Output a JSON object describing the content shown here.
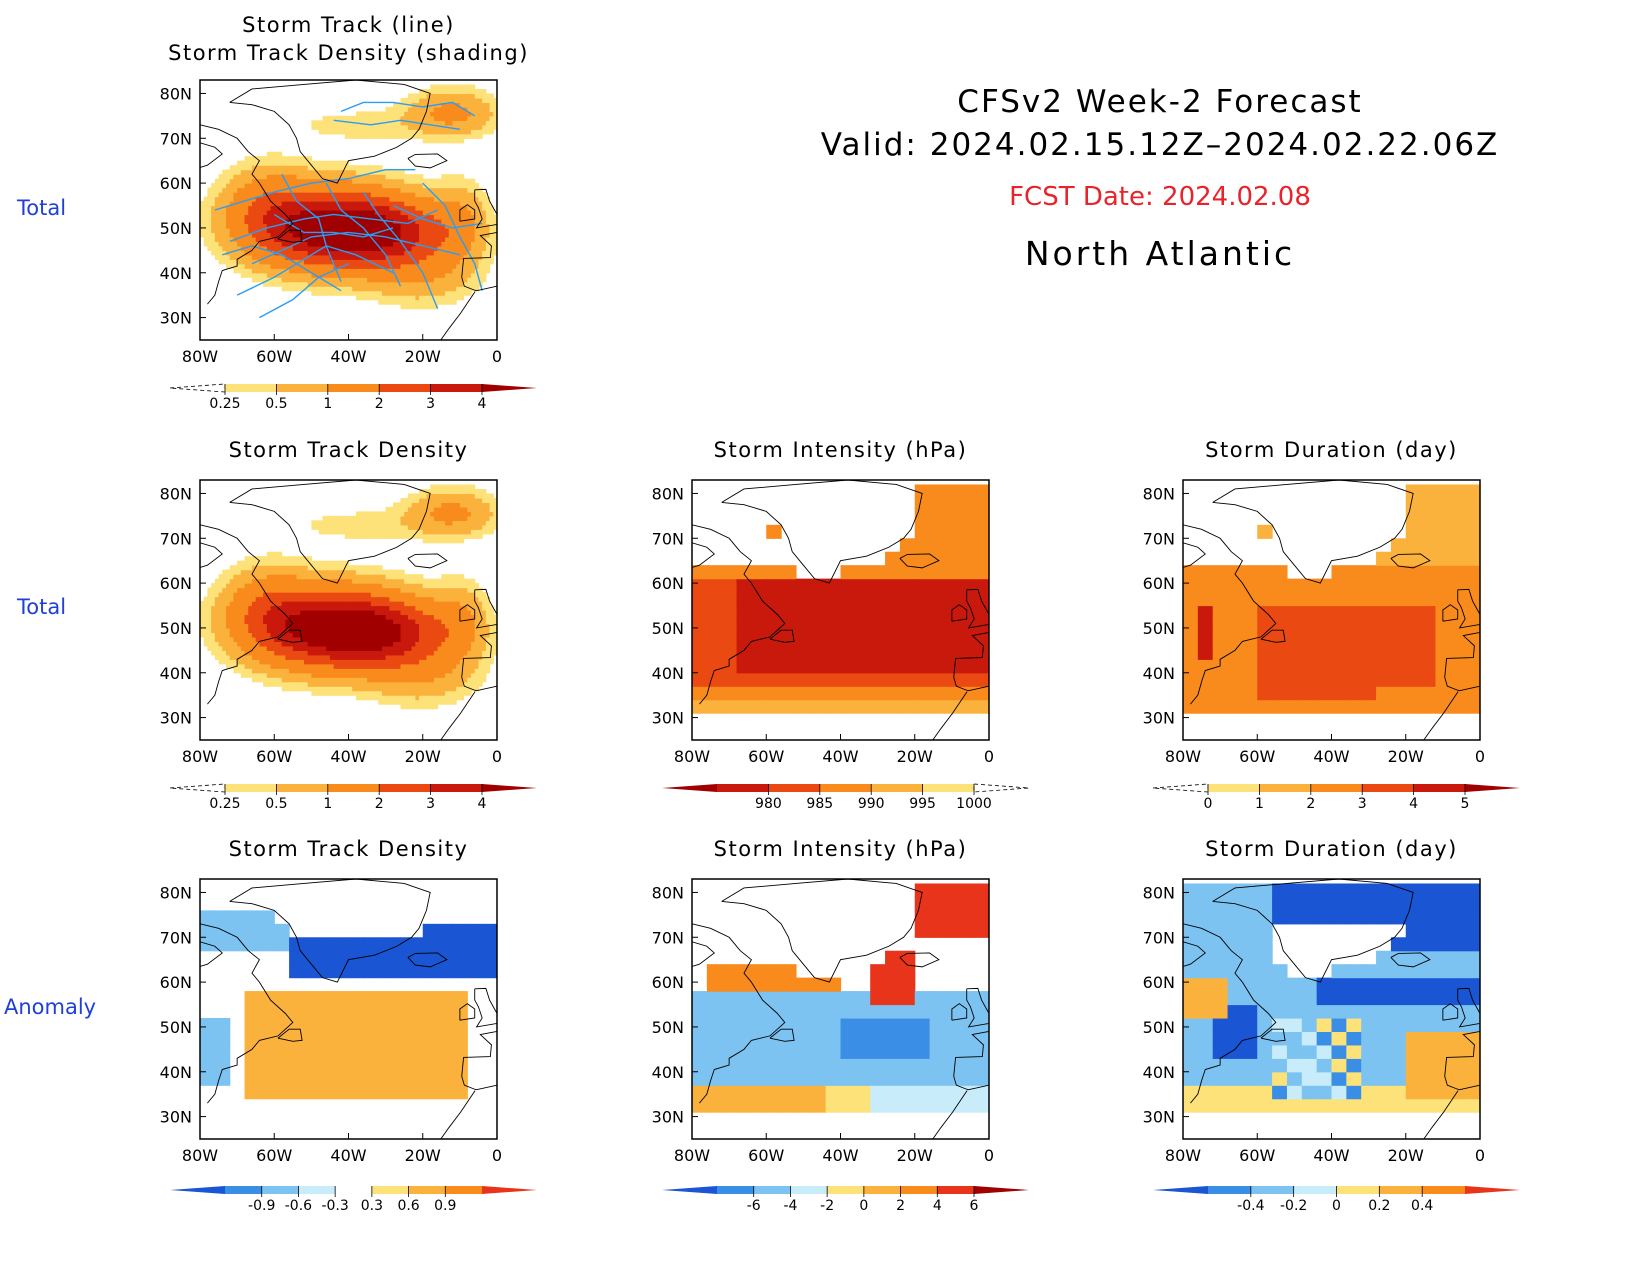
{
  "header": {
    "title": "CFSv2 Week-2 Forecast",
    "valid": "Valid: 2024.02.15.12Z–2024.02.22.06Z",
    "fcst_date": "FCST Date: 2024.02.08",
    "region": "North Atlantic"
  },
  "row_labels": [
    "Total",
    "Total",
    "Anomaly"
  ],
  "colors": {
    "row_label": "#1f3fd8",
    "fcst": "#e8242a",
    "track_line": "#2a9df4"
  },
  "panel_titles": {
    "p0": [
      "Storm Track (line)",
      "Storm Track Density (shading)"
    ],
    "p1": [
      "Storm Track Density"
    ],
    "p2": [
      "Storm Intensity (hPa)"
    ],
    "p3": [
      "Storm Duration (day)"
    ],
    "p4": [
      "Storm Track Density"
    ],
    "p5": [
      "Storm Intensity (hPa)"
    ],
    "p6": [
      "Storm Duration (day)"
    ]
  },
  "chart_data": [
    {
      "id": "p0",
      "type": "heatmap",
      "title": "Storm Track (line) / Storm Track Density (shading)",
      "x_ticks": [
        "80W",
        "60W",
        "40W",
        "20W",
        "0"
      ],
      "y_ticks": [
        "30N",
        "40N",
        "50N",
        "60N",
        "70N",
        "80N"
      ],
      "xlim": [
        -80,
        0
      ],
      "ylim": [
        25,
        83
      ],
      "colorbar": {
        "labels": [
          "0.25",
          "0.5",
          "1",
          "2",
          "3",
          "4"
        ],
        "colors": [
          "#fff6b0",
          "#fde27a",
          "#fbb23c",
          "#f98a1c",
          "#ea4a12",
          "#c9180c",
          "#a00000"
        ],
        "extend": "both",
        "low_dashed": true
      },
      "has_track_lines": true
    },
    {
      "id": "p1",
      "type": "heatmap",
      "title": "Storm Track Density",
      "x_ticks": [
        "80W",
        "60W",
        "40W",
        "20W",
        "0"
      ],
      "y_ticks": [
        "30N",
        "40N",
        "50N",
        "60N",
        "70N",
        "80N"
      ],
      "xlim": [
        -80,
        0
      ],
      "ylim": [
        25,
        83
      ],
      "colorbar": {
        "labels": [
          "0.25",
          "0.5",
          "1",
          "2",
          "3",
          "4"
        ],
        "colors": [
          "#fff6b0",
          "#fde27a",
          "#fbb23c",
          "#f98a1c",
          "#ea4a12",
          "#c9180c",
          "#a00000"
        ],
        "extend": "both",
        "low_dashed": true
      }
    },
    {
      "id": "p2",
      "type": "heatmap",
      "title": "Storm Intensity (hPa)",
      "x_ticks": [
        "80W",
        "60W",
        "40W",
        "20W",
        "0"
      ],
      "y_ticks": [
        "30N",
        "40N",
        "50N",
        "60N",
        "70N",
        "80N"
      ],
      "xlim": [
        -80,
        0
      ],
      "ylim": [
        25,
        83
      ],
      "colorbar": {
        "labels": [
          "980",
          "985",
          "990",
          "995",
          "1000"
        ],
        "colors": [
          "#a00000",
          "#c9180c",
          "#ea4a12",
          "#f98a1c",
          "#fbb23c",
          "#fde27a",
          "#fff6b0"
        ],
        "extend": "both",
        "high_dashed": true
      }
    },
    {
      "id": "p3",
      "type": "heatmap",
      "title": "Storm Duration (day)",
      "x_ticks": [
        "80W",
        "60W",
        "40W",
        "20W",
        "0"
      ],
      "y_ticks": [
        "30N",
        "40N",
        "50N",
        "60N",
        "70N",
        "80N"
      ],
      "xlim": [
        -80,
        0
      ],
      "ylim": [
        25,
        83
      ],
      "colorbar": {
        "labels": [
          "0",
          "1",
          "2",
          "3",
          "4",
          "5"
        ],
        "colors": [
          "#fff6b0",
          "#fde27a",
          "#fbb23c",
          "#f98a1c",
          "#ea4a12",
          "#c9180c",
          "#a00000"
        ],
        "extend": "both",
        "low_dashed": true
      }
    },
    {
      "id": "p4",
      "type": "heatmap",
      "title": "Storm Track Density",
      "x_ticks": [
        "80W",
        "60W",
        "40W",
        "20W",
        "0"
      ],
      "y_ticks": [
        "30N",
        "40N",
        "50N",
        "60N",
        "70N",
        "80N"
      ],
      "xlim": [
        -80,
        0
      ],
      "ylim": [
        25,
        83
      ],
      "colorbar": {
        "labels": [
          "-0.9",
          "-0.6",
          "-0.3",
          "0.3",
          "0.6",
          "0.9"
        ],
        "colors": [
          "#1a55d4",
          "#3a8ee6",
          "#7cc3f2",
          "#c8ecfa",
          "#ffffff",
          "#fde27a",
          "#fbb23c",
          "#f98a1c",
          "#e8341a"
        ],
        "extend": "both"
      }
    },
    {
      "id": "p5",
      "type": "heatmap",
      "title": "Storm Intensity (hPa)",
      "x_ticks": [
        "80W",
        "60W",
        "40W",
        "20W",
        "0"
      ],
      "y_ticks": [
        "30N",
        "40N",
        "50N",
        "60N",
        "70N",
        "80N"
      ],
      "xlim": [
        -80,
        0
      ],
      "ylim": [
        25,
        83
      ],
      "colorbar": {
        "labels": [
          "-6",
          "-4",
          "-2",
          "0",
          "2",
          "4",
          "6"
        ],
        "colors": [
          "#1a55d4",
          "#3a8ee6",
          "#7cc3f2",
          "#c8ecfa",
          "#fde27a",
          "#fbb23c",
          "#f98a1c",
          "#e8341a",
          "#a00000"
        ],
        "extend": "both"
      }
    },
    {
      "id": "p6",
      "type": "heatmap",
      "title": "Storm Duration (day)",
      "x_ticks": [
        "80W",
        "60W",
        "40W",
        "20W",
        "0"
      ],
      "y_ticks": [
        "30N",
        "40N",
        "50N",
        "60N",
        "70N",
        "80N"
      ],
      "xlim": [
        -80,
        0
      ],
      "ylim": [
        25,
        83
      ],
      "colorbar": {
        "labels": [
          "-0.4",
          "-0.2",
          "0",
          "0.2",
          "0.4"
        ],
        "colors": [
          "#1a55d4",
          "#3a8ee6",
          "#7cc3f2",
          "#c8ecfa",
          "#fde27a",
          "#fbb23c",
          "#f98a1c",
          "#e8341a"
        ],
        "extend": "both"
      }
    }
  ]
}
